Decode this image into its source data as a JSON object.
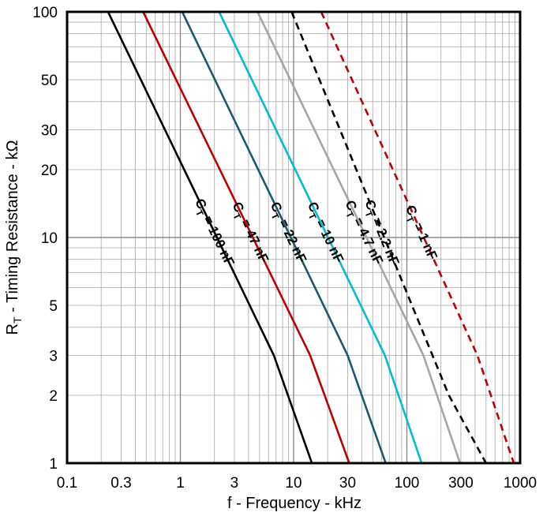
{
  "chart_data": {
    "type": "line",
    "title": "",
    "xlabel": "f - Frequency - kHz",
    "ylabel_main": "R",
    "ylabel_sub": "T",
    "ylabel_rest": " - Timing Resistance - kΩ",
    "xscale": "log",
    "yscale": "log",
    "xlim": [
      0.1,
      1000
    ],
    "ylim": [
      1,
      100
    ],
    "grid": true,
    "x_tick_labels": [
      {
        "value": 0.1,
        "label": "0.1"
      },
      {
        "value": 0.3,
        "label": "0.3"
      },
      {
        "value": 1,
        "label": "1"
      },
      {
        "value": 3,
        "label": "3"
      },
      {
        "value": 10,
        "label": "10"
      },
      {
        "value": 30,
        "label": "30"
      },
      {
        "value": 100,
        "label": "100"
      },
      {
        "value": 300,
        "label": "300"
      },
      {
        "value": 1000,
        "label": "1000"
      }
    ],
    "y_tick_labels": [
      {
        "value": 1,
        "label": "1"
      },
      {
        "value": 2,
        "label": "2"
      },
      {
        "value": 3,
        "label": "3"
      },
      {
        "value": 5,
        "label": "5"
      },
      {
        "value": 10,
        "label": "10"
      },
      {
        "value": 20,
        "label": "20"
      },
      {
        "value": 30,
        "label": "30"
      },
      {
        "value": 50,
        "label": "50"
      },
      {
        "value": 100,
        "label": "100"
      }
    ],
    "series": [
      {
        "name": "CT = 100 nF",
        "label_main": "C",
        "label_sub": "T",
        "label_rest": " = 100 nF",
        "color": "#000000",
        "dashed": false,
        "points": [
          [
            0.23,
            100
          ],
          [
            6.7,
            3
          ],
          [
            14.5,
            1
          ]
        ]
      },
      {
        "name": "CT = 47 nF",
        "label_main": "C",
        "label_sub": "T",
        "label_rest": " = 47 nF",
        "color": "#c00000",
        "dashed": false,
        "points": [
          [
            0.47,
            100
          ],
          [
            14,
            3
          ],
          [
            31,
            1
          ]
        ]
      },
      {
        "name": "CT = 22 nF",
        "label_main": "C",
        "label_sub": "T",
        "label_rest": " = 22 nF",
        "color": "#1a5a6e",
        "dashed": false,
        "points": [
          [
            1.04,
            100
          ],
          [
            30,
            3
          ],
          [
            65,
            1
          ]
        ]
      },
      {
        "name": "CT = 10 nF",
        "label_main": "C",
        "label_sub": "T",
        "label_rest": " = 10 nF",
        "color": "#00bcd4",
        "dashed": false,
        "points": [
          [
            2.2,
            100
          ],
          [
            64,
            3
          ],
          [
            135,
            1
          ]
        ]
      },
      {
        "name": "CT = 4.7 nF",
        "label_main": "C",
        "label_sub": "T",
        "label_rest": " = 4.7 nF",
        "color": "#a6a6a6",
        "dashed": false,
        "points": [
          [
            4.8,
            100
          ],
          [
            140,
            3
          ],
          [
            295,
            1
          ]
        ]
      },
      {
        "name": "CT = 2.2 nF",
        "label_main": "C",
        "label_sub": "T",
        "label_rest": " = 2.2 nF",
        "color": "#000000",
        "dashed": true,
        "points": [
          [
            9.6,
            100
          ],
          [
            235,
            2
          ],
          [
            500,
            1
          ]
        ]
      },
      {
        "name": "CT = 1 nF",
        "label_main": "C",
        "label_sub": "T",
        "label_rest": " = 1 nF",
        "color": "#c00000",
        "dashed": true,
        "points": [
          [
            17.5,
            100
          ],
          [
            420,
            3
          ],
          [
            880,
            1
          ]
        ]
      }
    ]
  }
}
